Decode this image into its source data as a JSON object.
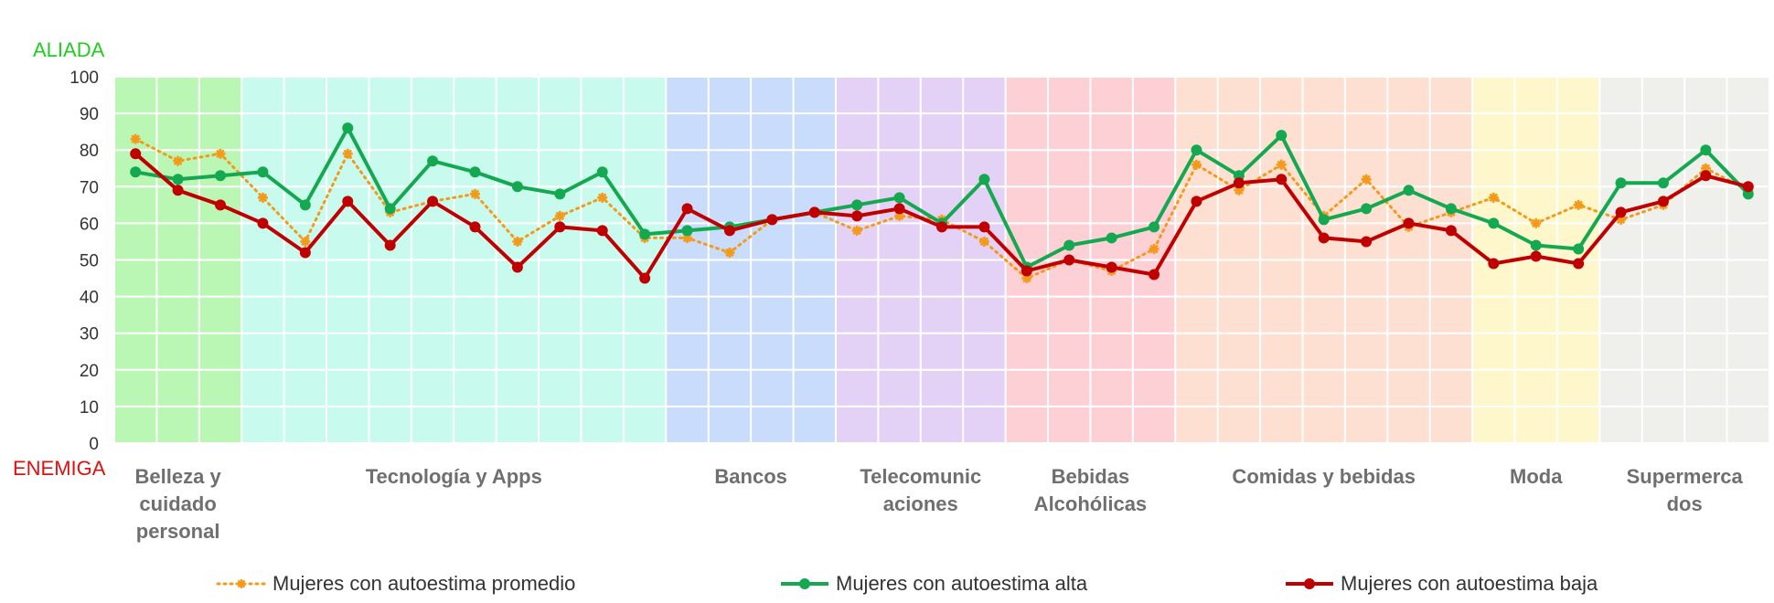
{
  "chart_data": {
    "type": "line",
    "y_top_label": "ALIADA",
    "y_bottom_label": "ENEMIGA",
    "ylim": [
      0,
      100
    ],
    "yticks": [
      "0",
      "10",
      "20",
      "30",
      "40",
      "50",
      "60",
      "70",
      "80",
      "90",
      "100"
    ],
    "grid": true,
    "legend_position": "bottom",
    "groups": [
      {
        "label": "Belleza y\ncuidado\npersonal",
        "start": 0,
        "end": 3,
        "color": "#bbf7b4"
      },
      {
        "label": "Tecnología y Apps",
        "start": 3,
        "end": 13,
        "color": "#c8fbee"
      },
      {
        "label": "Bancos",
        "start": 13,
        "end": 17,
        "color": "#c9dcfb"
      },
      {
        "label": "Telecomunic\naciones",
        "start": 17,
        "end": 21,
        "color": "#e3d2f5"
      },
      {
        "label": "Bebidas\nAlcohólicas",
        "start": 21,
        "end": 25,
        "color": "#fdd0d6"
      },
      {
        "label": "Comidas y bebidas",
        "start": 25,
        "end": 32,
        "color": "#fde0d2"
      },
      {
        "label": "Moda",
        "start": 32,
        "end": 35,
        "color": "#fef7cc"
      },
      {
        "label": "Supermerca\ndos",
        "start": 35,
        "end": 39,
        "color": "#eff0ec"
      }
    ],
    "series": [
      {
        "name": "Mujeres con autoestima promedio",
        "color": "#f39a1b",
        "style": "dotted",
        "values": [
          83,
          77,
          79,
          67,
          55,
          79,
          63,
          66,
          68,
          55,
          62,
          67,
          56,
          56,
          52,
          61,
          63,
          58,
          62,
          61,
          55,
          45,
          50,
          47,
          53,
          76,
          69,
          76,
          62,
          72,
          59,
          63,
          67,
          60,
          65,
          61,
          65,
          75,
          69
        ]
      },
      {
        "name": "Mujeres con autoestima alta",
        "color": "#14a850",
        "style": "solid",
        "values": [
          74,
          72,
          73,
          74,
          65,
          86,
          64,
          77,
          74,
          70,
          68,
          74,
          57,
          58,
          59,
          61,
          63,
          65,
          67,
          60,
          72,
          48,
          54,
          56,
          59,
          80,
          73,
          84,
          61,
          64,
          69,
          64,
          60,
          54,
          53,
          71,
          71,
          80,
          68
        ]
      },
      {
        "name": "Mujeres con autoestima baja",
        "color": "#c00000",
        "style": "solid",
        "values": [
          79,
          69,
          65,
          60,
          52,
          66,
          54,
          66,
          59,
          48,
          59,
          58,
          45,
          64,
          58,
          61,
          63,
          62,
          64,
          59,
          59,
          47,
          50,
          48,
          46,
          66,
          71,
          72,
          56,
          55,
          60,
          58,
          49,
          51,
          49,
          63,
          66,
          73,
          70
        ]
      }
    ]
  }
}
